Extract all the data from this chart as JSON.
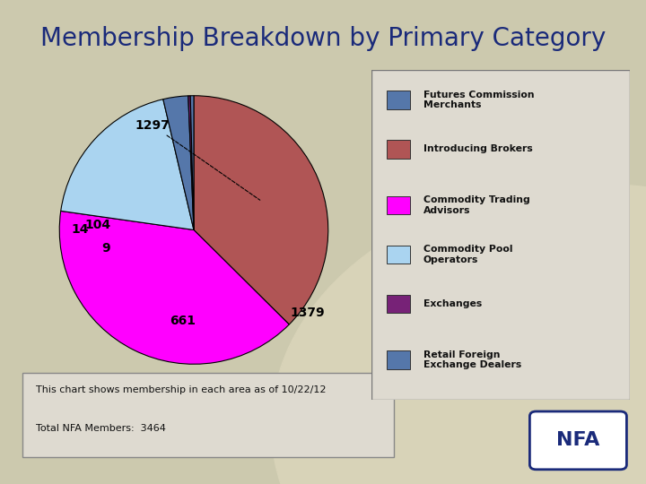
{
  "title": "Membership Breakdown by Primary Category",
  "values_ordered": [
    1297,
    1379,
    661,
    104,
    9,
    14
  ],
  "colors_ordered": [
    "#b05555",
    "#ff00ff",
    "#aad4f0",
    "#5577aa",
    "#772277",
    "#5577aa"
  ],
  "labels_ordered": [
    "1297",
    "1379",
    "661",
    "104",
    "9",
    "14"
  ],
  "legend_colors": [
    "#5577aa",
    "#b05555",
    "#ff00ff",
    "#aad4f0",
    "#772277",
    "#5577aa"
  ],
  "legend_labels": [
    "Futures Commission\nMerchants",
    "Introducing Brokers",
    "Commodity Trading\nAdvisors",
    "Commodity Pool\nOperators",
    "Exchanges",
    "Retail Foreign\nExchange Dealers"
  ],
  "background_color": "#ccc9ae",
  "legend_bg": "#dedad0",
  "title_color": "#1a2a7a",
  "title_fontsize": 20,
  "note_line1": "This chart shows membership in each area as of 10/22/12",
  "note_line2": "Total NFA Members:  3464",
  "circle_color": "#d8d3b8"
}
